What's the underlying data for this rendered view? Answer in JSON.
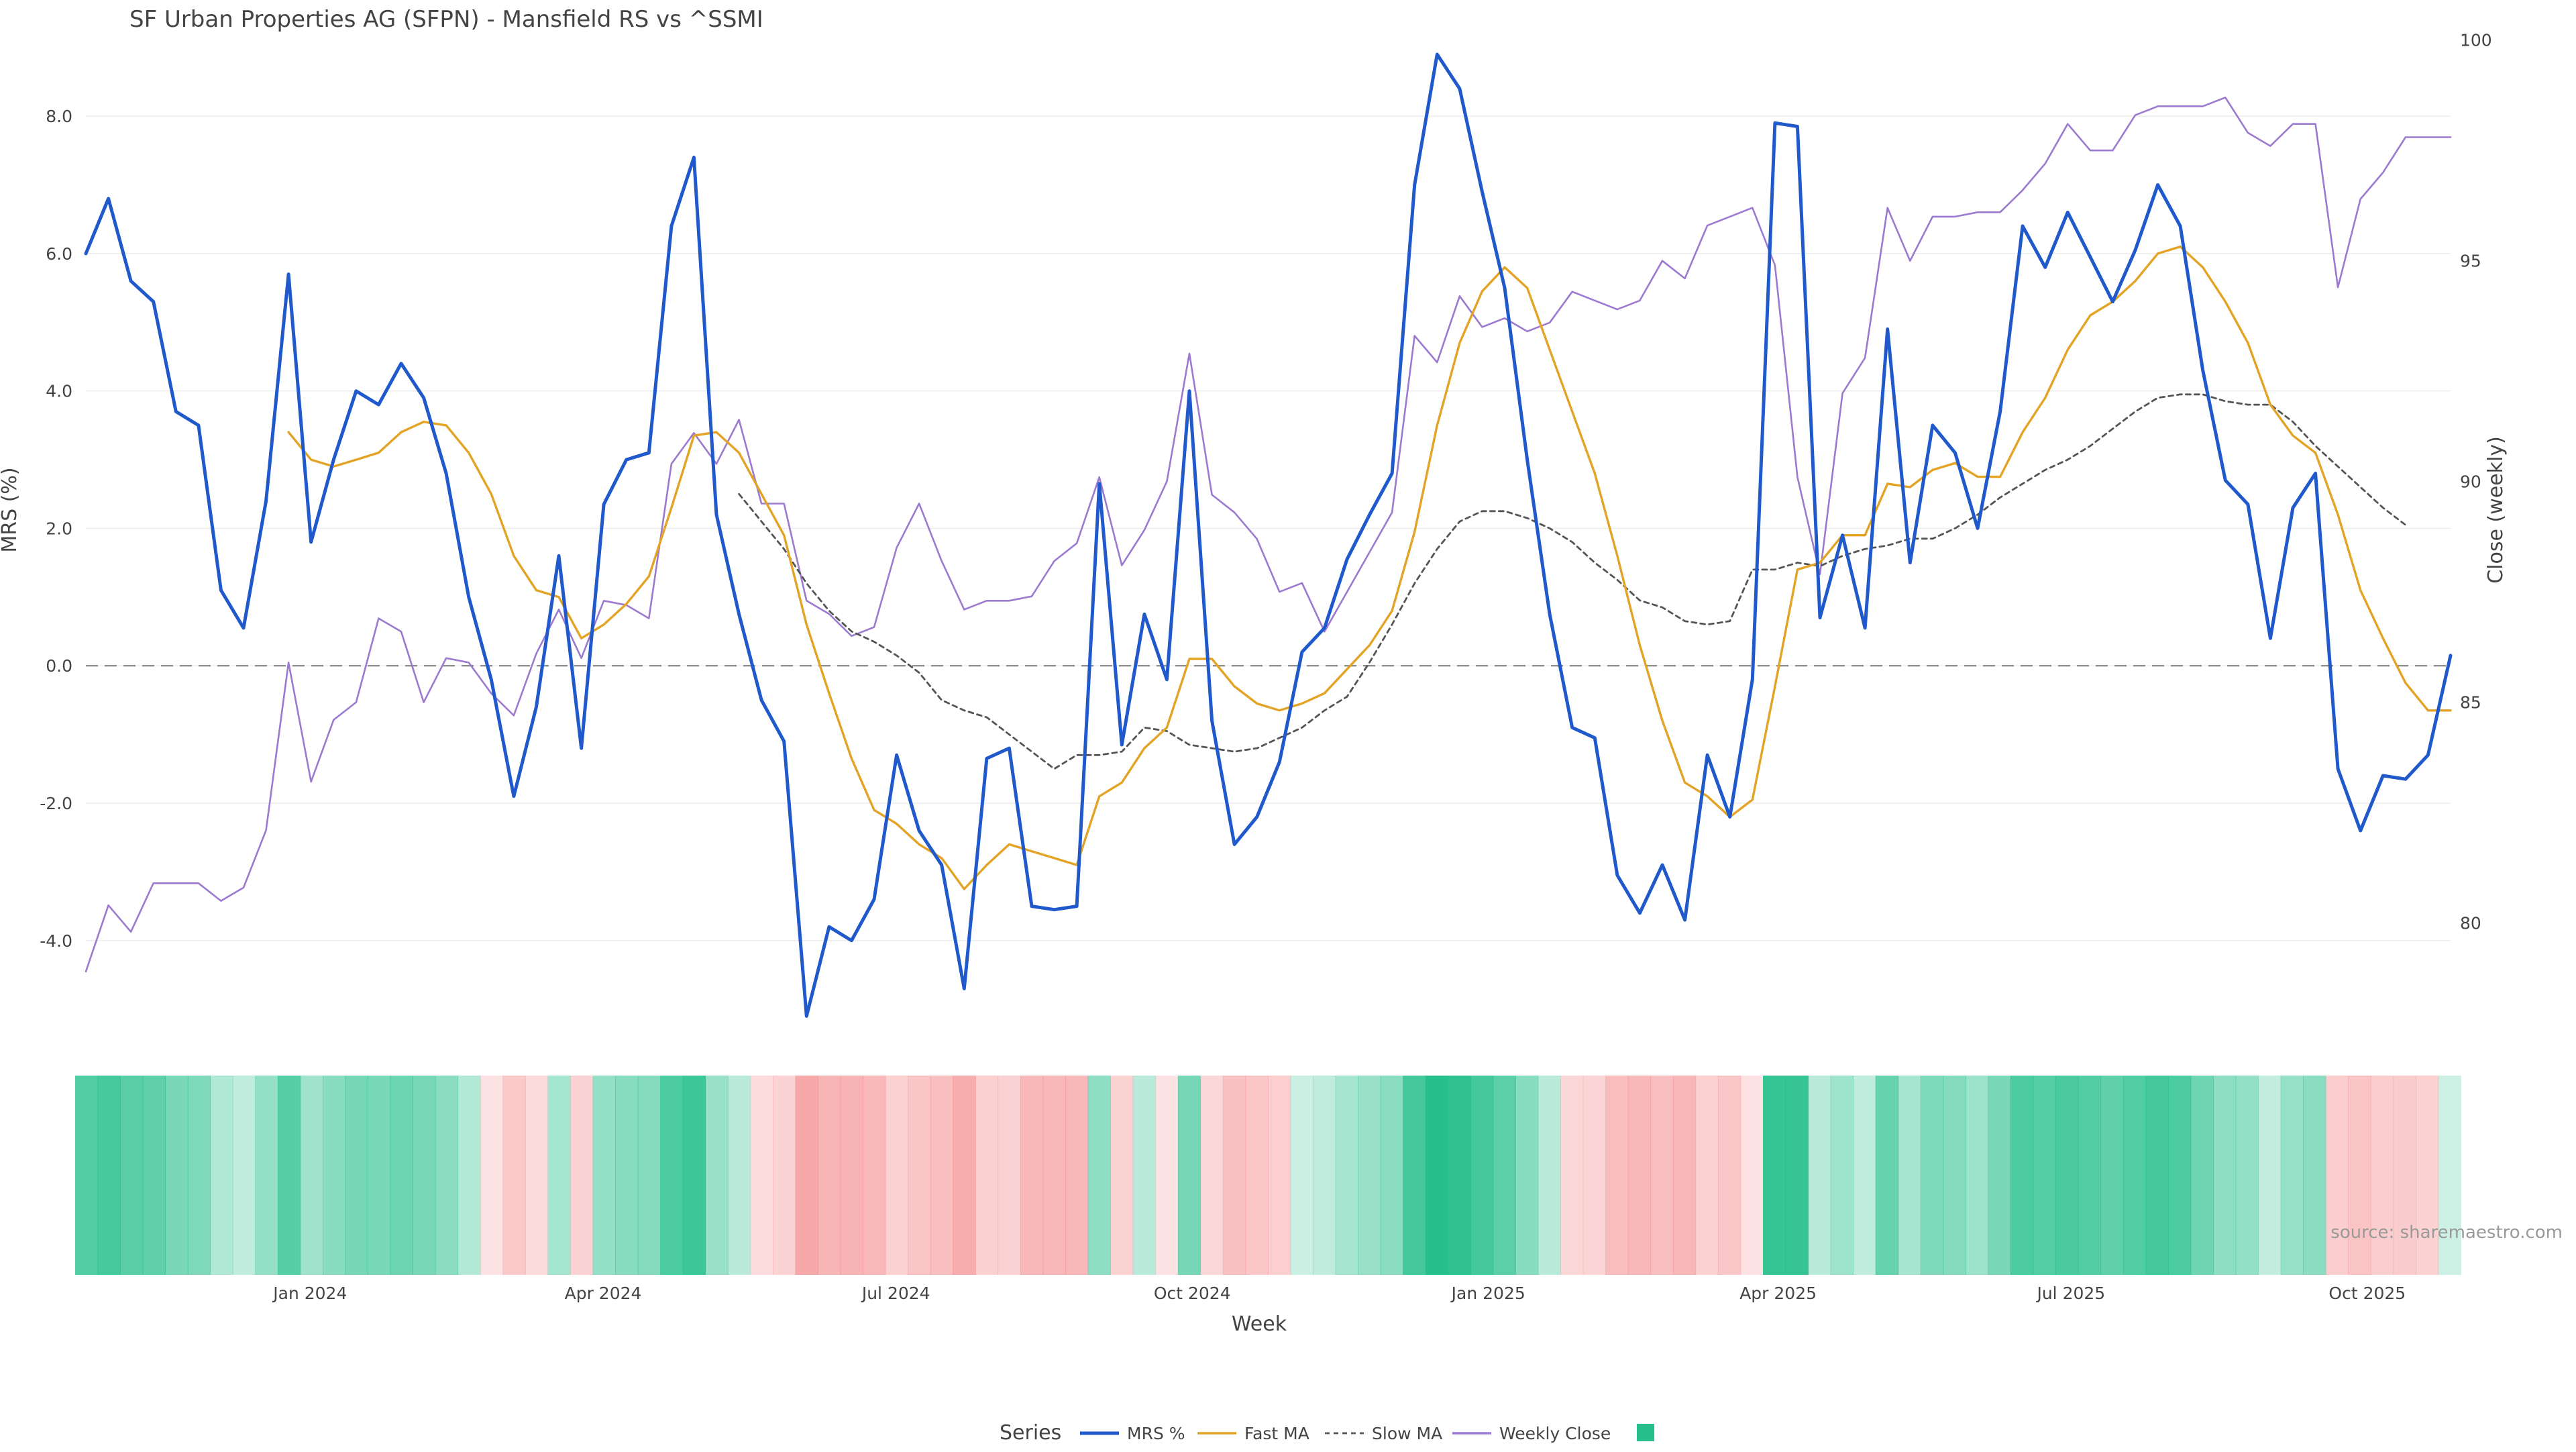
{
  "chart_data": {
    "type": "line",
    "title": "SF Urban Properties AG (SFPN) - Mansfield RS vs ^SSMI",
    "xlabel": "Week",
    "ylabel_left": "MRS (%)",
    "ylabel_right": "Close (weekly)",
    "source": "source: sharemaestro.com",
    "left_ticks": [
      "8.0",
      "6.0",
      "4.0",
      "2.0",
      "0.0",
      "-2.0",
      "-4.0"
    ],
    "left_tick_values": [
      8,
      6,
      4,
      2,
      0,
      -2,
      -4
    ],
    "left_range": [
      -5.35,
      9.3
    ],
    "right_ticks": [
      "100",
      "95",
      "90",
      "85",
      "80"
    ],
    "right_tick_values": [
      100,
      95,
      90,
      85,
      80
    ],
    "right_range": [
      77.5,
      100.3
    ],
    "x_start": "2023-10-20",
    "x_end": "2025-10-30",
    "x_tick_labels": [
      "Jan 2024",
      "Apr 2024",
      "Jul 2024",
      "Oct 2024",
      "Jan 2025",
      "Apr 2025",
      "Jul 2025",
      "Oct 2025"
    ],
    "x_tick_dates": [
      "2024-01-01",
      "2024-04-01",
      "2024-07-01",
      "2024-10-01",
      "2025-01-01",
      "2025-04-01",
      "2025-07-01",
      "2025-10-01"
    ],
    "zero_line": 0,
    "series": [
      {
        "name": "MRS %",
        "color": "#2059cc",
        "values": [
          6.0,
          6.8,
          5.6,
          5.3,
          3.7,
          3.5,
          1.1,
          0.55,
          2.4,
          5.7,
          1.8,
          3.0,
          4.0,
          3.8,
          4.4,
          3.9,
          2.8,
          1.0,
          -0.2,
          -1.9,
          -0.6,
          1.6,
          -1.2,
          2.35,
          3.0,
          3.1,
          6.4,
          7.4,
          2.2,
          0.75,
          -0.5,
          -1.1,
          -5.1,
          -3.8,
          -4.0,
          -3.4,
          -1.3,
          -2.4,
          -2.9,
          -4.7,
          -1.35,
          -1.2,
          -3.5,
          -3.55,
          -3.5,
          2.65,
          -1.15,
          0.75,
          -0.2,
          4.0,
          -0.8,
          -2.6,
          -2.2,
          -1.4,
          0.2,
          0.55,
          1.55,
          2.2,
          2.8,
          7.0,
          8.9,
          8.4,
          6.9,
          5.5,
          3.0,
          0.75,
          -0.9,
          -1.05,
          -3.05,
          -3.6,
          -2.9,
          -3.7,
          -1.3,
          -2.2,
          -0.2,
          7.9,
          7.85,
          0.7,
          1.9,
          0.55,
          4.9,
          1.5,
          3.5,
          3.1,
          2.0,
          3.7,
          6.4,
          5.8,
          6.6,
          5.95,
          5.3,
          6.05,
          7.0,
          6.4,
          4.3,
          2.7,
          2.35,
          0.4,
          2.3,
          2.8,
          -1.5,
          -2.4,
          -1.6,
          -1.65,
          -1.3,
          0.15
        ]
      },
      {
        "name": "Fast MA",
        "color": "#e3a325",
        "values": [
          null,
          null,
          null,
          null,
          null,
          null,
          null,
          null,
          null,
          3.4,
          3.0,
          2.9,
          3.0,
          3.1,
          3.4,
          3.55,
          3.5,
          3.1,
          2.5,
          1.6,
          1.1,
          1.0,
          0.4,
          0.6,
          0.9,
          1.3,
          2.3,
          3.35,
          3.4,
          3.1,
          2.5,
          1.9,
          0.6,
          -0.4,
          -1.35,
          -2.1,
          -2.3,
          -2.6,
          -2.8,
          -3.25,
          -2.9,
          -2.6,
          -2.7,
          -2.8,
          -2.9,
          -1.9,
          -1.7,
          -1.2,
          -0.9,
          0.1,
          0.1,
          -0.3,
          -0.55,
          -0.65,
          -0.55,
          -0.4,
          -0.05,
          0.3,
          0.8,
          1.95,
          3.5,
          4.7,
          5.45,
          5.8,
          5.5,
          4.6,
          3.7,
          2.8,
          1.6,
          0.3,
          -0.8,
          -1.7,
          -1.9,
          -2.2,
          -1.95,
          -0.3,
          1.4,
          1.5,
          1.9,
          1.9,
          2.65,
          2.6,
          2.85,
          2.95,
          2.75,
          2.75,
          3.4,
          3.9,
          4.6,
          5.1,
          5.3,
          5.6,
          6.0,
          6.1,
          5.8,
          5.3,
          4.7,
          3.8,
          3.35,
          3.1,
          2.2,
          1.1,
          0.4,
          -0.25,
          -0.65,
          -0.65
        ]
      },
      {
        "name": "Slow MA",
        "color": "#555555",
        "dashed": true,
        "values": [
          null,
          null,
          null,
          null,
          null,
          null,
          null,
          null,
          null,
          null,
          null,
          null,
          null,
          null,
          null,
          null,
          null,
          null,
          null,
          null,
          null,
          null,
          null,
          null,
          null,
          null,
          null,
          null,
          null,
          2.5,
          2.1,
          1.7,
          1.2,
          0.8,
          0.5,
          0.35,
          0.15,
          -0.1,
          -0.5,
          -0.65,
          -0.75,
          -1.0,
          -1.25,
          -1.5,
          -1.3,
          -1.3,
          -1.25,
          -0.9,
          -0.95,
          -1.15,
          -1.2,
          -1.25,
          -1.2,
          -1.05,
          -0.9,
          -0.65,
          -0.45,
          0.05,
          0.6,
          1.2,
          1.7,
          2.1,
          2.25,
          2.25,
          2.15,
          2.0,
          1.8,
          1.5,
          1.25,
          0.95,
          0.85,
          0.65,
          0.6,
          0.65,
          1.4,
          1.4,
          1.5,
          1.45,
          1.6,
          1.7,
          1.75,
          1.85,
          1.85,
          2.0,
          2.2,
          2.45,
          2.65,
          2.85,
          3.0,
          3.2,
          3.45,
          3.7,
          3.9,
          3.95,
          3.95,
          3.85,
          3.8,
          3.8,
          3.55,
          3.2,
          2.9,
          2.6,
          2.3,
          2.05
        ]
      },
      {
        "name": "Weekly Close",
        "color": "#9b7ad0",
        "axis": "right",
        "values": [
          78.9,
          80.4,
          79.8,
          80.9,
          80.9,
          80.9,
          80.5,
          80.8,
          82.1,
          85.9,
          83.2,
          84.6,
          85.0,
          86.9,
          86.6,
          85.0,
          86.0,
          85.9,
          85.2,
          84.7,
          86.1,
          87.1,
          86.0,
          87.3,
          87.2,
          86.9,
          90.4,
          91.1,
          90.4,
          91.4,
          89.5,
          89.5,
          87.3,
          87.0,
          86.5,
          86.7,
          88.5,
          89.5,
          88.2,
          87.1,
          87.3,
          87.3,
          87.4,
          88.2,
          88.6,
          90.1,
          88.1,
          88.9,
          90.0,
          92.9,
          89.7,
          89.3,
          88.7,
          87.5,
          87.7,
          86.6,
          87.5,
          88.4,
          89.3,
          93.3,
          92.7,
          94.2,
          93.5,
          93.7,
          93.4,
          93.6,
          94.3,
          94.1,
          93.9,
          94.1,
          95.0,
          94.6,
          95.8,
          96.0,
          96.2,
          94.9,
          90.1,
          87.9,
          92.0,
          92.8,
          96.2,
          95.0,
          96.0,
          96.0,
          96.1,
          96.1,
          96.6,
          97.2,
          98.1,
          97.5,
          97.5,
          98.3,
          98.5,
          98.5,
          98.5,
          98.7,
          97.9,
          97.6,
          98.1,
          98.1,
          94.4,
          96.4,
          97.0,
          97.8,
          97.8,
          97.8
        ]
      }
    ],
    "heatmap": {
      "colorscale_positive": "#27c08c",
      "colorscale_negative": "#f4888a",
      "max_abs": 8.9
    },
    "legend": {
      "title": "Series",
      "items": [
        "MRS %",
        "Fast MA",
        "Slow MA",
        "Weekly Close",
        ""
      ],
      "last_swatch_color": "#27c08c"
    }
  }
}
